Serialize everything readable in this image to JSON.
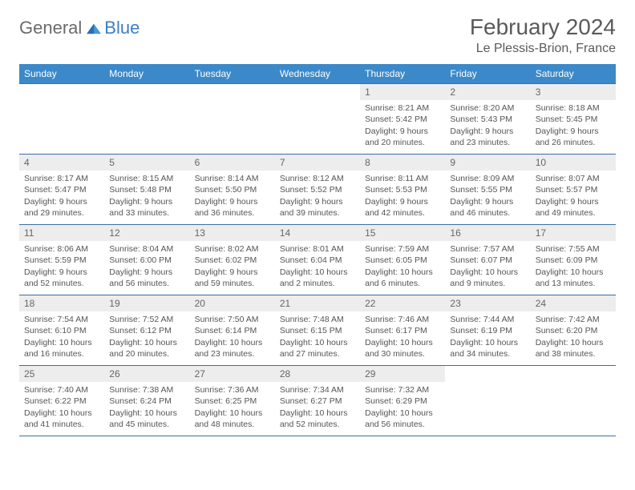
{
  "logo": {
    "text1": "General",
    "text2": "Blue"
  },
  "title": "February 2024",
  "location": "Le Plessis-Brion, France",
  "colors": {
    "header_bg": "#3b89c9",
    "header_text": "#ffffff",
    "border": "#3b6fa0",
    "daynum_bg": "#ededed",
    "logo_gray": "#6b6b6b",
    "logo_blue": "#3b7fc4"
  },
  "weekdays": [
    "Sunday",
    "Monday",
    "Tuesday",
    "Wednesday",
    "Thursday",
    "Friday",
    "Saturday"
  ],
  "weeks": [
    [
      null,
      null,
      null,
      null,
      {
        "n": "1",
        "sr": "8:21 AM",
        "ss": "5:42 PM",
        "dl": "9 hours and 20 minutes."
      },
      {
        "n": "2",
        "sr": "8:20 AM",
        "ss": "5:43 PM",
        "dl": "9 hours and 23 minutes."
      },
      {
        "n": "3",
        "sr": "8:18 AM",
        "ss": "5:45 PM",
        "dl": "9 hours and 26 minutes."
      }
    ],
    [
      {
        "n": "4",
        "sr": "8:17 AM",
        "ss": "5:47 PM",
        "dl": "9 hours and 29 minutes."
      },
      {
        "n": "5",
        "sr": "8:15 AM",
        "ss": "5:48 PM",
        "dl": "9 hours and 33 minutes."
      },
      {
        "n": "6",
        "sr": "8:14 AM",
        "ss": "5:50 PM",
        "dl": "9 hours and 36 minutes."
      },
      {
        "n": "7",
        "sr": "8:12 AM",
        "ss": "5:52 PM",
        "dl": "9 hours and 39 minutes."
      },
      {
        "n": "8",
        "sr": "8:11 AM",
        "ss": "5:53 PM",
        "dl": "9 hours and 42 minutes."
      },
      {
        "n": "9",
        "sr": "8:09 AM",
        "ss": "5:55 PM",
        "dl": "9 hours and 46 minutes."
      },
      {
        "n": "10",
        "sr": "8:07 AM",
        "ss": "5:57 PM",
        "dl": "9 hours and 49 minutes."
      }
    ],
    [
      {
        "n": "11",
        "sr": "8:06 AM",
        "ss": "5:59 PM",
        "dl": "9 hours and 52 minutes."
      },
      {
        "n": "12",
        "sr": "8:04 AM",
        "ss": "6:00 PM",
        "dl": "9 hours and 56 minutes."
      },
      {
        "n": "13",
        "sr": "8:02 AM",
        "ss": "6:02 PM",
        "dl": "9 hours and 59 minutes."
      },
      {
        "n": "14",
        "sr": "8:01 AM",
        "ss": "6:04 PM",
        "dl": "10 hours and 2 minutes."
      },
      {
        "n": "15",
        "sr": "7:59 AM",
        "ss": "6:05 PM",
        "dl": "10 hours and 6 minutes."
      },
      {
        "n": "16",
        "sr": "7:57 AM",
        "ss": "6:07 PM",
        "dl": "10 hours and 9 minutes."
      },
      {
        "n": "17",
        "sr": "7:55 AM",
        "ss": "6:09 PM",
        "dl": "10 hours and 13 minutes."
      }
    ],
    [
      {
        "n": "18",
        "sr": "7:54 AM",
        "ss": "6:10 PM",
        "dl": "10 hours and 16 minutes."
      },
      {
        "n": "19",
        "sr": "7:52 AM",
        "ss": "6:12 PM",
        "dl": "10 hours and 20 minutes."
      },
      {
        "n": "20",
        "sr": "7:50 AM",
        "ss": "6:14 PM",
        "dl": "10 hours and 23 minutes."
      },
      {
        "n": "21",
        "sr": "7:48 AM",
        "ss": "6:15 PM",
        "dl": "10 hours and 27 minutes."
      },
      {
        "n": "22",
        "sr": "7:46 AM",
        "ss": "6:17 PM",
        "dl": "10 hours and 30 minutes."
      },
      {
        "n": "23",
        "sr": "7:44 AM",
        "ss": "6:19 PM",
        "dl": "10 hours and 34 minutes."
      },
      {
        "n": "24",
        "sr": "7:42 AM",
        "ss": "6:20 PM",
        "dl": "10 hours and 38 minutes."
      }
    ],
    [
      {
        "n": "25",
        "sr": "7:40 AM",
        "ss": "6:22 PM",
        "dl": "10 hours and 41 minutes."
      },
      {
        "n": "26",
        "sr": "7:38 AM",
        "ss": "6:24 PM",
        "dl": "10 hours and 45 minutes."
      },
      {
        "n": "27",
        "sr": "7:36 AM",
        "ss": "6:25 PM",
        "dl": "10 hours and 48 minutes."
      },
      {
        "n": "28",
        "sr": "7:34 AM",
        "ss": "6:27 PM",
        "dl": "10 hours and 52 minutes."
      },
      {
        "n": "29",
        "sr": "7:32 AM",
        "ss": "6:29 PM",
        "dl": "10 hours and 56 minutes."
      },
      null,
      null
    ]
  ],
  "labels": {
    "sunrise": "Sunrise:",
    "sunset": "Sunset:",
    "daylight": "Daylight:"
  }
}
